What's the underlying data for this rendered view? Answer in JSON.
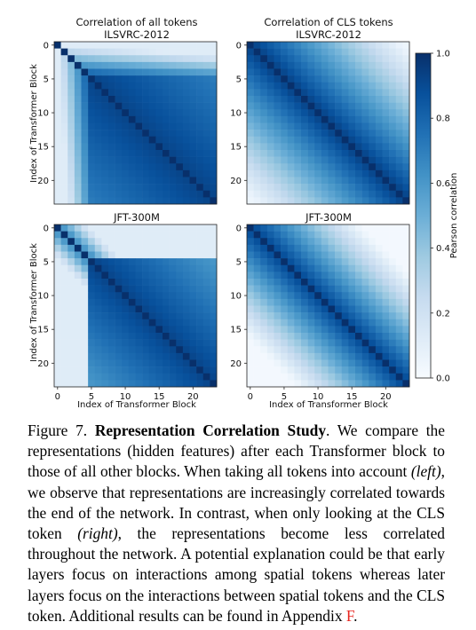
{
  "figure": {
    "panels": [
      {
        "id": "tl",
        "title_line1": "Correlation of all tokens",
        "title_line2": "ILSVRC-2012"
      },
      {
        "id": "tr",
        "title_line1": "Correlation of CLS tokens",
        "title_line2": "ILSVRC-2012"
      },
      {
        "id": "bl",
        "title_line1": "",
        "title_line2": "JFT-300M"
      },
      {
        "id": "br",
        "title_line1": "",
        "title_line2": "JFT-300M"
      }
    ],
    "ylabel": "Index of Transformer Block",
    "xlabel": "Index of Transformer Block",
    "colorbar_label": "Pearson correlation",
    "colorbar_ticks": [
      "0.0",
      "0.2",
      "0.4",
      "0.6",
      "0.8",
      "1.0"
    ],
    "axis_ticks": [
      "0",
      "5",
      "10",
      "15",
      "20"
    ]
  },
  "chart_data": [
    {
      "type": "heatmap",
      "title": "Correlation of all tokens ILSVRC-2012",
      "size": 24,
      "ylabel": "Index of Transformer Block",
      "xlabel": "",
      "value_range": [
        0,
        1
      ],
      "colormap": "Blues",
      "pattern": "correlation increases toward end of network; low near early blocks"
    },
    {
      "type": "heatmap",
      "title": "Correlation of CLS tokens ILSVRC-2012",
      "size": 24,
      "ylabel": "",
      "xlabel": "",
      "value_range": [
        0,
        1
      ],
      "colormap": "Blues",
      "pattern": "correlation decays with block distance; strong diagonal band"
    },
    {
      "type": "heatmap",
      "title": "JFT-300M",
      "size": 24,
      "ylabel": "Index of Transformer Block",
      "xlabel": "Index of Transformer Block",
      "value_range": [
        0,
        1
      ],
      "colormap": "Blues",
      "pattern": "blocks 5-23 highly correlated; blocks 0-4 weakly correlated"
    },
    {
      "type": "heatmap",
      "title": "JFT-300M",
      "size": 24,
      "ylabel": "",
      "xlabel": "Index of Transformer Block",
      "value_range": [
        0,
        1
      ],
      "colormap": "Blues",
      "pattern": "narrow diagonal band; decays with block distance"
    }
  ],
  "caption": {
    "label": "Figure 7.",
    "bold_title": "Representation Correlation Study",
    "part1": ". We compare the representations (hidden features) after each Transformer block to those of all other blocks. When taking all tokens into account ",
    "left": "(left)",
    "part2": ", we observe that representations are increasingly correlated towards the end of the network. In contrast, when only looking at the CLS token ",
    "right": "(right)",
    "part3": ", the representations become less correlated throughout the network. A potential explanation could be that early layers focus on interactions among spatial tokens whereas later layers focus on the interactions between spatial tokens and the CLS token. Additional results can be found in Appendix ",
    "appendix_ref": "F",
    "end": "."
  }
}
